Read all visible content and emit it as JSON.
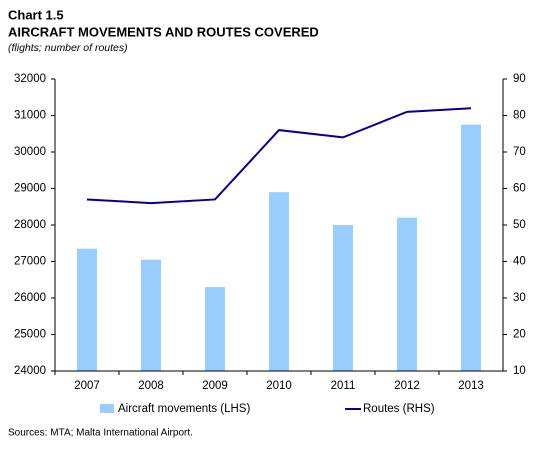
{
  "chart_data": {
    "type": "bar-line",
    "label": "Chart 1.5",
    "title": "AIRCRAFT MOVEMENTS AND ROUTES COVERED",
    "subtitle": "(flights; number of routes)",
    "categories": [
      "2007",
      "2008",
      "2009",
      "2010",
      "2011",
      "2012",
      "2013"
    ],
    "series": [
      {
        "name": "Aircraft movements (LHS)",
        "type": "bar",
        "color": "#99ccff",
        "values": [
          27350,
          27050,
          26300,
          28900,
          28000,
          28200,
          30750
        ]
      },
      {
        "name": "Routes (RHS)",
        "type": "line",
        "axis": "y2",
        "color": "#000099",
        "values": [
          57,
          56,
          57,
          76,
          74,
          81,
          82
        ]
      }
    ],
    "ylim": [
      24000,
      32000
    ],
    "yticks": [
      24000,
      25000,
      26000,
      27000,
      28000,
      29000,
      30000,
      31000,
      32000
    ],
    "y2lim": [
      10,
      90
    ],
    "y2ticks": [
      10,
      20,
      30,
      40,
      50,
      60,
      70,
      80,
      90
    ],
    "source": "Sources: MTA; Malta International Airport."
  }
}
